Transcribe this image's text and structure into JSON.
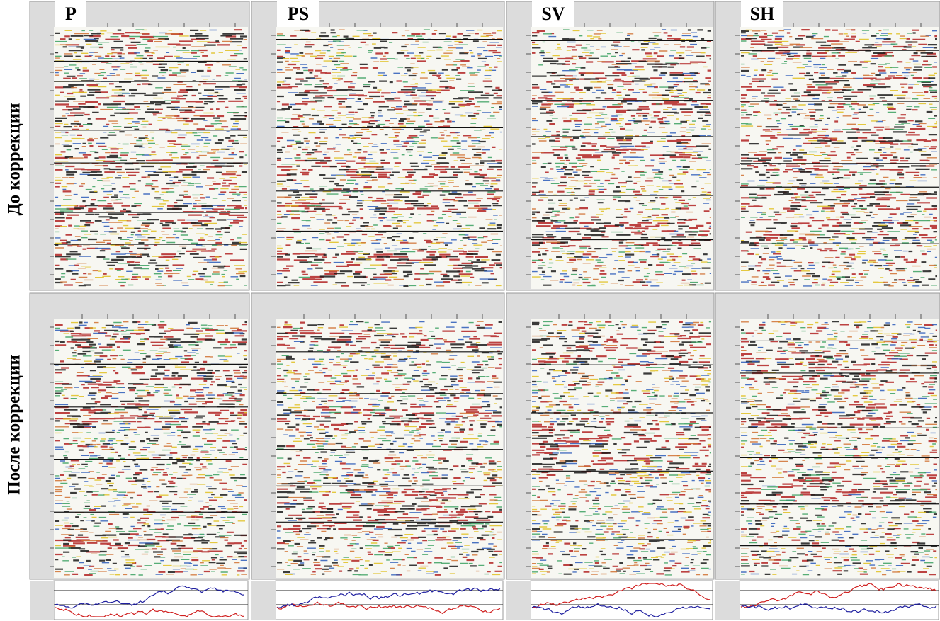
{
  "panels": [
    {
      "label": "P"
    },
    {
      "label": "PS"
    },
    {
      "label": "SV"
    },
    {
      "label": "SH"
    }
  ],
  "rows": [
    {
      "label": "До коррекции"
    },
    {
      "label": "После коррекции"
    }
  ]
}
